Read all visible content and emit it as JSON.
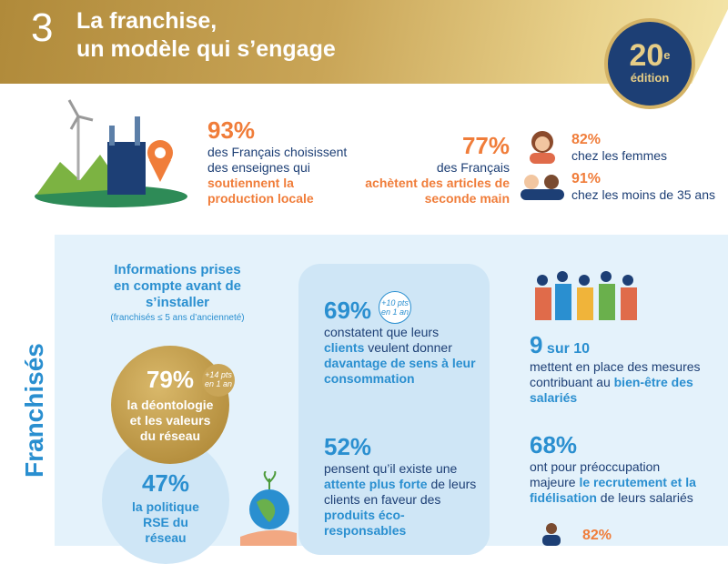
{
  "header": {
    "number": "3",
    "title_line1": "La franchise,",
    "title_line2": "un modèle qui s’engage",
    "badge": {
      "number": "20",
      "sup": "e",
      "label": "édition"
    }
  },
  "top_stats": [
    {
      "value": "93%",
      "text": "des Français choisissent des enseignes qui",
      "highlight": "soutiennent la production locale"
    },
    {
      "value": "77%",
      "text": "des Français",
      "highlight": "achètent des articles de seconde main",
      "details": [
        {
          "value": "82%",
          "text": "chez les femmes"
        },
        {
          "value": "91%",
          "text": "chez les moins de 35 ans"
        }
      ]
    }
  ],
  "section": {
    "side_label": "Franchisés",
    "info": {
      "title": "Informations prises en compte avant de s’installer",
      "note": "(franchisés ≤ 5 ans d’ancienneté)",
      "items": [
        {
          "value": "79%",
          "change": "+14 pts en 1 an",
          "text": "la déontologie et les valeurs du réseau"
        },
        {
          "value": "47%",
          "text": "la politique RSE du réseau"
        }
      ]
    },
    "middle": [
      {
        "value": "69%",
        "change": "+10 pts en 1 an",
        "parts": [
          "constatent que leurs",
          "clients",
          "veulent donner",
          "davantage de sens à leur consommation"
        ]
      },
      {
        "value": "52%",
        "parts": [
          "pensent qu’il existe une",
          "attente plus forte",
          "de leurs clients en faveur des",
          "produits éco-responsables"
        ]
      }
    ],
    "right": [
      {
        "value": "9",
        "unit": "sur 10",
        "parts": [
          "mettent en place des mesures contribuant au",
          "bien-être des salariés"
        ]
      },
      {
        "value": "68%",
        "parts": [
          "ont pour préoccupation majeure",
          "le recrutement et la fidélisation",
          "de leurs salariés"
        ]
      },
      {
        "value": "82%"
      }
    ]
  }
}
